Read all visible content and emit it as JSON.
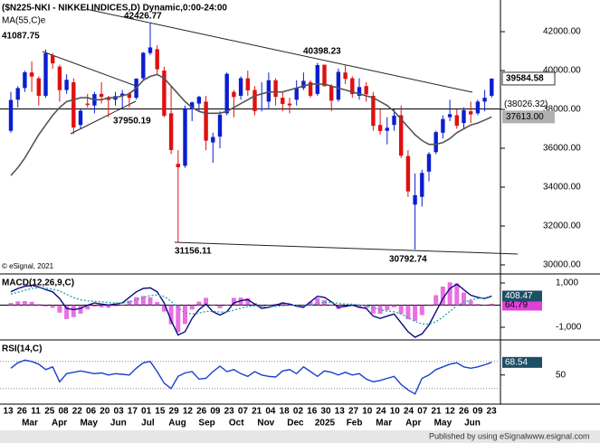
{
  "chart_data": [
    {
      "type": "candlestick",
      "title": "($N225-NKI - NIKKEI INDICES,D) Dynamic,0:00-24:00",
      "watermark": "© eSignal, 2021",
      "up_color": "#0a1fd0",
      "down_color": "#e01010",
      "open": [
        36900,
        38500,
        39100,
        39900,
        39600,
        38700,
        40800,
        40200,
        39000,
        39400,
        37200,
        38300,
        38200,
        38800,
        38600,
        38500,
        38700,
        38800,
        38600,
        39600,
        40900,
        41100,
        40000,
        37800,
        35200,
        35100,
        38000,
        38300,
        38400,
        36300,
        36600,
        37800,
        38900,
        38700,
        39600,
        39000,
        38000,
        38400,
        39500,
        38600,
        38300,
        38500,
        39100,
        39400,
        38800,
        40300,
        39200,
        38500,
        39900,
        39600,
        38700,
        39200,
        38700,
        37200,
        36900,
        37200,
        37700,
        35600,
        33100,
        33500,
        34800,
        35800,
        36800,
        37600,
        37700,
        37300,
        37900,
        37800,
        38400,
        38700
      ],
      "high": [
        38900,
        39200,
        39990,
        40470,
        39700,
        41087.75,
        40900,
        40300,
        39800,
        39600,
        38000,
        38800,
        38900,
        39400,
        38700,
        38900,
        39000,
        38900,
        39600,
        40950,
        42426.77,
        41300,
        40200,
        39200,
        35900,
        38200,
        38400,
        38700,
        38700,
        36800,
        37900,
        39900,
        39000,
        39700,
        40000,
        39200,
        39400,
        39900,
        39600,
        38900,
        38600,
        39500,
        39900,
        39500,
        40398.23,
        40300,
        39300,
        40100,
        40300,
        39700,
        39600,
        39400,
        38900,
        38000,
        37600,
        38000,
        38200,
        35900,
        34700,
        34900,
        35800,
        36900,
        37700,
        38500,
        38000,
        38100,
        38400,
        38500,
        39000,
        39600
      ],
      "low": [
        36800,
        38100,
        38900,
        38900,
        38200,
        38600,
        40100,
        38400,
        38800,
        36733,
        37000,
        38100,
        37800,
        38300,
        37600,
        38200,
        38000,
        38100,
        38500,
        39500,
        40800,
        39800,
        37600,
        35700,
        31156.11,
        35000,
        37400,
        37900,
        35900,
        35250,
        36000,
        37700,
        37600,
        38500,
        38700,
        37700,
        37900,
        38000,
        38200,
        37900,
        37800,
        38200,
        39000,
        38600,
        38700,
        39300,
        37900,
        38400,
        39300,
        38600,
        38500,
        38400,
        36900,
        36700,
        36200,
        36900,
        35500,
        33500,
        30792.74,
        33000,
        34300,
        35700,
        36500,
        37400,
        37000,
        37000,
        37300,
        37700,
        37900,
        38600
      ],
      "close": [
        38487,
        39098,
        39910,
        39688,
        38700,
        40888,
        40369,
        38992,
        39523,
        37068,
        37934,
        38229,
        38787,
        38646,
        38487,
        38683,
        38814,
        38596,
        39583,
        40912,
        41190,
        40063,
        37667,
        35909,
        35025,
        38062,
        38364,
        38648,
        36391,
        36582,
        37724,
        39830,
        38636,
        39605,
        38981,
        37914,
        38053,
        39500,
        38642,
        38283,
        38208,
        39091,
        39470,
        38701,
        40281,
        39190,
        38451,
        39931,
        39572,
        38787,
        39149,
        38776,
        37155,
        36887,
        37053,
        37677,
        35617,
        33780,
        33586,
        34730,
        35705,
        36831,
        37503,
        37753,
        37160,
        37965,
        37741,
        38403,
        38600,
        39584.58
      ],
      "ma": {
        "name": "MA(55,C)e",
        "color": "#555555",
        "last_label": "37613.00",
        "values": [
          34600,
          35000,
          35500,
          36100,
          36700,
          37200,
          37700,
          38100,
          38400,
          38500,
          38600,
          38600,
          38500,
          38500,
          38600,
          38600,
          38700,
          38800,
          39100,
          39500,
          39700,
          39800,
          39600,
          39200,
          38800,
          38400,
          38100,
          37900,
          37800,
          37800,
          37800,
          37900,
          38100,
          38300,
          38500,
          38700,
          38800,
          38900,
          38900,
          38900,
          39000,
          39100,
          39200,
          39300,
          39300,
          39300,
          39200,
          39100,
          39000,
          38900,
          38800,
          38700,
          38600,
          38400,
          38200,
          37900,
          37500,
          37100,
          36700,
          36400,
          36200,
          36200,
          36300,
          36500,
          36800,
          37000,
          37200,
          37300,
          37450,
          37613
        ]
      },
      "hline": {
        "value": 38026.32,
        "label": "(38026.32)"
      },
      "annotations": [
        42426.77,
        41087.75,
        40398.23,
        37950.19,
        31156.11,
        30792.74
      ],
      "ylim": [
        29580,
        43630
      ],
      "yticks": [
        {
          "value": 30000,
          "label": "30000.00"
        },
        {
          "value": 32000,
          "label": "32000.00"
        },
        {
          "value": 34000,
          "label": "34000.00"
        },
        {
          "value": 36000,
          "label": "36000.00"
        },
        {
          "value": 38000,
          "label": "38000.00"
        },
        {
          "value": 40000,
          "label": "40000.00"
        },
        {
          "value": 42000,
          "label": "42000.00"
        }
      ],
      "x_day_labels": [
        "13",
        "26",
        "11",
        "25",
        "08",
        "22",
        "06",
        "20",
        "03",
        "17",
        "01",
        "15",
        "29",
        "12",
        "26",
        "09",
        "23",
        "07",
        "21",
        "04",
        "18",
        "02",
        "16",
        "30",
        "13",
        "27",
        "10",
        "24",
        "10",
        "24",
        "07",
        "21",
        "12",
        "26",
        "09",
        "23"
      ],
      "x_month_labels": [
        "Mar",
        "Apr",
        "May",
        "Jun",
        "Jul",
        "Aug",
        "Sep",
        "Oct",
        "Nov",
        "Dec",
        "2025",
        "Feb",
        "Mar",
        "Apr",
        "May",
        "Jun"
      ]
    },
    {
      "type": "line",
      "title": "MACD(12,26,9,C)",
      "zero_line": true,
      "series": [
        {
          "type": "bar",
          "color": "#e040d8",
          "values": [
            100,
            170,
            180,
            150,
            40,
            -60,
            -120,
            -340,
            -630,
            -540,
            -390,
            -190,
            -70,
            -100,
            -120,
            -50,
            0,
            200,
            360,
            410,
            350,
            140,
            -290,
            -870,
            -1220,
            -850,
            -200,
            160,
            330,
            -20,
            -140,
            10,
            330,
            340,
            310,
            90,
            -90,
            -30,
            60,
            130,
            60,
            -30,
            -60,
            150,
            320,
            220,
            20,
            -180,
            -100,
            -40,
            -110,
            -130,
            -380,
            -390,
            -230,
            -100,
            -400,
            -640,
            -710,
            -450,
            -40,
            450,
            840,
            1030,
            980,
            570,
            210,
            50,
            -30,
            64.79
          ]
        },
        {
          "type": "line",
          "color": "#0a0a80",
          "values": [
            600,
            750,
            850,
            900,
            820,
            700,
            600,
            300,
            -150,
            -200,
            -150,
            0,
            100,
            50,
            0,
            50,
            100,
            350,
            600,
            750,
            780,
            600,
            100,
            -700,
            -1350,
            -1200,
            -600,
            -200,
            50,
            -300,
            -450,
            -300,
            100,
            200,
            250,
            50,
            -150,
            -100,
            0,
            100,
            50,
            -50,
            -100,
            150,
            400,
            350,
            150,
            -100,
            -50,
            0,
            -100,
            -150,
            -500,
            -600,
            -500,
            -400,
            -800,
            -1200,
            -1450,
            -1300,
            -900,
            -300,
            300,
            750,
            950,
            700,
            450,
            350,
            300,
            408.47
          ]
        },
        {
          "type": "line",
          "dashed": true,
          "color": "#2aa8b0",
          "values": [
            500,
            580,
            670,
            750,
            780,
            760,
            720,
            640,
            480,
            340,
            240,
            190,
            170,
            150,
            120,
            100,
            100,
            150,
            240,
            340,
            430,
            460,
            390,
            170,
            -130,
            -350,
            -400,
            -360,
            -280,
            -280,
            -310,
            -310,
            -230,
            -140,
            -60,
            -40,
            -60,
            -70,
            -60,
            -30,
            -10,
            -20,
            -40,
            0,
            80,
            130,
            130,
            80,
            50,
            40,
            10,
            -20,
            -120,
            -210,
            -270,
            -300,
            -400,
            -560,
            -740,
            -850,
            -860,
            -750,
            -540,
            -280,
            -30,
            130,
            240,
            300,
            330,
            343.68
          ]
        }
      ],
      "ylim": [
        -1531,
        1327
      ],
      "yticks": [
        {
          "value": 1000,
          "label": "1,000"
        },
        {
          "value": -1000,
          "label": "-1,000"
        }
      ]
    },
    {
      "type": "line",
      "title": "RSI(14,C)",
      "levels": [
        30,
        70
      ],
      "series": [
        {
          "type": "line",
          "color": "#1a3fd0",
          "values": [
            60,
            68,
            72,
            70,
            66,
            58,
            62,
            40,
            52,
            54,
            56,
            54,
            52,
            53,
            50,
            52,
            51,
            50,
            60,
            68,
            70,
            55,
            38,
            30,
            48,
            53,
            55,
            44,
            45,
            55,
            63,
            55,
            58,
            52,
            48,
            55,
            50,
            48,
            47,
            56,
            58,
            52,
            62,
            55,
            48,
            56,
            54,
            50,
            54,
            50,
            52,
            44,
            40,
            42,
            45,
            48,
            36,
            28,
            22,
            45,
            50,
            58,
            62,
            66,
            68,
            62,
            60,
            62,
            65,
            68.54
          ]
        }
      ],
      "ylim": [
        7,
        99
      ],
      "yticks": [
        50
      ]
    }
  ],
  "footer": {
    "left": "Published by using eSignal",
    "right": "www.esignal.com"
  }
}
